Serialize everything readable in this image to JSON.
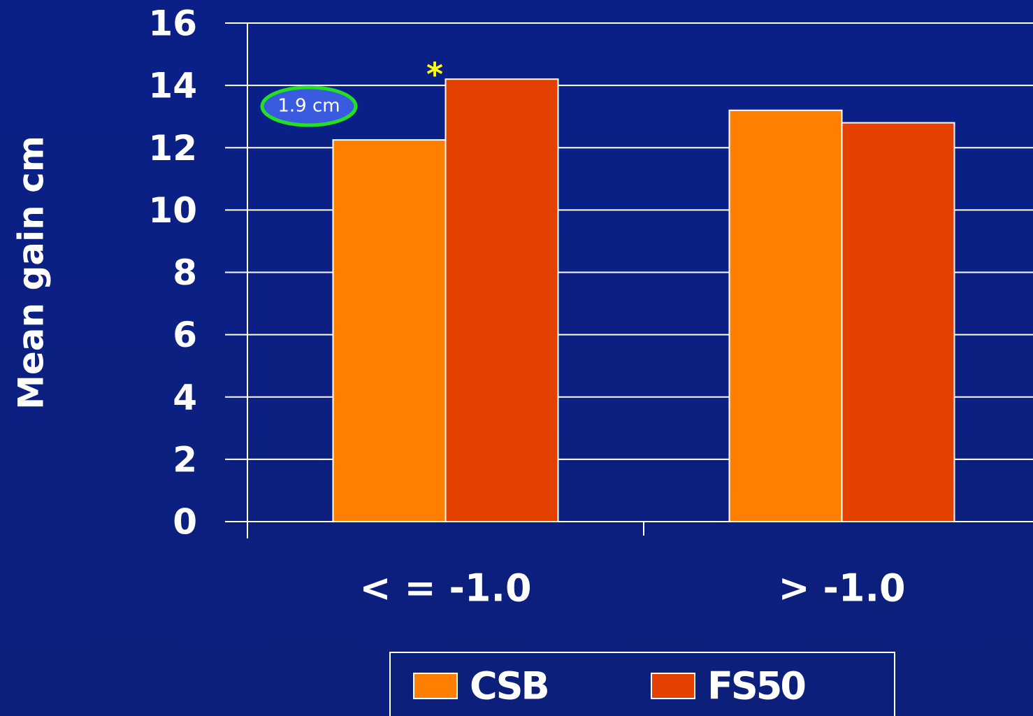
{
  "chart_data": {
    "type": "bar",
    "y_label": "Mean gain cm",
    "categories": [
      "< = -1.0",
      "> -1.0"
    ],
    "series": [
      {
        "name": "CSB",
        "color": "#ff8000",
        "values": [
          12.25,
          13.2
        ]
      },
      {
        "name": "FS50",
        "color": "#e44000",
        "values": [
          14.2,
          12.8
        ]
      }
    ],
    "ylim": [
      0,
      16
    ],
    "yticks": [
      0,
      2,
      4,
      6,
      8,
      10,
      12,
      14,
      16
    ],
    "grid": true,
    "annotations": [
      "*",
      "1.9 cm"
    ]
  }
}
